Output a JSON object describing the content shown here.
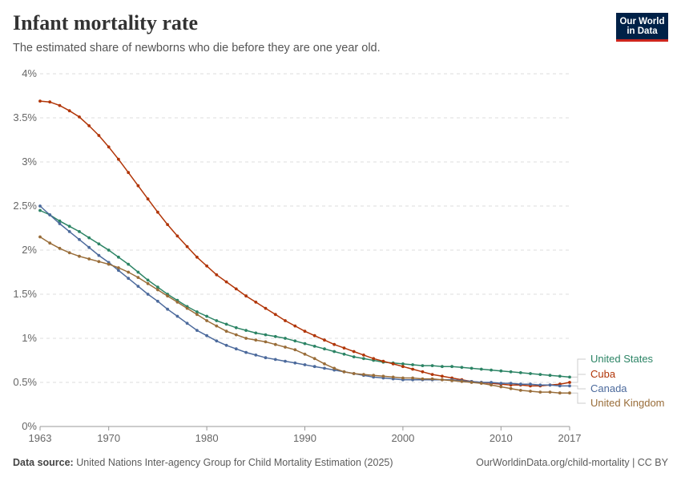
{
  "header": {
    "title": "Infant mortality rate",
    "subtitle": "The estimated share of newborns who die before they are one year old."
  },
  "logo": {
    "line1": "Our World",
    "line2": "in Data"
  },
  "footer": {
    "source_label": "Data source:",
    "source_text": "United Nations Inter-agency Group for Child Mortality Estimation (2025)",
    "link": "OurWorldinData.org/child-mortality | CC BY"
  },
  "chart_data": {
    "type": "line",
    "title": "Infant mortality rate",
    "subtitle": "The estimated share of newborns who die before they are one year old.",
    "xlim": [
      1963,
      2017
    ],
    "ylim": [
      0,
      4
    ],
    "x_ticks": [
      1963,
      1970,
      1980,
      1990,
      2000,
      2010,
      2017
    ],
    "y_ticks": [
      0,
      0.5,
      1,
      1.5,
      2,
      2.5,
      3,
      3.5,
      4
    ],
    "y_unit": "%",
    "grid": true,
    "legend": "right-end labels",
    "series": [
      {
        "name": "United States",
        "color": "#2c8465",
        "points": [
          [
            1963,
            2.45
          ],
          [
            1964,
            2.4
          ],
          [
            1965,
            2.33
          ],
          [
            1966,
            2.27
          ],
          [
            1967,
            2.21
          ],
          [
            1968,
            2.14
          ],
          [
            1969,
            2.07
          ],
          [
            1970,
            2.0
          ],
          [
            1971,
            1.92
          ],
          [
            1972,
            1.84
          ],
          [
            1973,
            1.75
          ],
          [
            1974,
            1.66
          ],
          [
            1975,
            1.58
          ],
          [
            1976,
            1.5
          ],
          [
            1977,
            1.43
          ],
          [
            1978,
            1.36
          ],
          [
            1979,
            1.3
          ],
          [
            1980,
            1.25
          ],
          [
            1981,
            1.2
          ],
          [
            1982,
            1.16
          ],
          [
            1983,
            1.12
          ],
          [
            1984,
            1.09
          ],
          [
            1985,
            1.06
          ],
          [
            1986,
            1.04
          ],
          [
            1987,
            1.02
          ],
          [
            1988,
            1.0
          ],
          [
            1989,
            0.97
          ],
          [
            1990,
            0.94
          ],
          [
            1991,
            0.91
          ],
          [
            1992,
            0.88
          ],
          [
            1993,
            0.85
          ],
          [
            1994,
            0.82
          ],
          [
            1995,
            0.79
          ],
          [
            1996,
            0.77
          ],
          [
            1997,
            0.75
          ],
          [
            1998,
            0.73
          ],
          [
            1999,
            0.72
          ],
          [
            2000,
            0.71
          ],
          [
            2001,
            0.7
          ],
          [
            2002,
            0.69
          ],
          [
            2003,
            0.69
          ],
          [
            2004,
            0.68
          ],
          [
            2005,
            0.68
          ],
          [
            2006,
            0.67
          ],
          [
            2007,
            0.66
          ],
          [
            2008,
            0.65
          ],
          [
            2009,
            0.64
          ],
          [
            2010,
            0.63
          ],
          [
            2011,
            0.62
          ],
          [
            2012,
            0.61
          ],
          [
            2013,
            0.6
          ],
          [
            2014,
            0.59
          ],
          [
            2015,
            0.58
          ],
          [
            2016,
            0.57
          ],
          [
            2017,
            0.56
          ]
        ]
      },
      {
        "name": "Cuba",
        "color": "#b13507",
        "points": [
          [
            1963,
            3.69
          ],
          [
            1964,
            3.68
          ],
          [
            1965,
            3.64
          ],
          [
            1966,
            3.58
          ],
          [
            1967,
            3.51
          ],
          [
            1968,
            3.41
          ],
          [
            1969,
            3.3
          ],
          [
            1970,
            3.17
          ],
          [
            1971,
            3.03
          ],
          [
            1972,
            2.88
          ],
          [
            1973,
            2.73
          ],
          [
            1974,
            2.58
          ],
          [
            1975,
            2.43
          ],
          [
            1976,
            2.29
          ],
          [
            1977,
            2.16
          ],
          [
            1978,
            2.04
          ],
          [
            1979,
            1.92
          ],
          [
            1980,
            1.82
          ],
          [
            1981,
            1.72
          ],
          [
            1982,
            1.64
          ],
          [
            1983,
            1.56
          ],
          [
            1984,
            1.48
          ],
          [
            1985,
            1.41
          ],
          [
            1986,
            1.34
          ],
          [
            1987,
            1.27
          ],
          [
            1988,
            1.2
          ],
          [
            1989,
            1.14
          ],
          [
            1990,
            1.08
          ],
          [
            1991,
            1.03
          ],
          [
            1992,
            0.98
          ],
          [
            1993,
            0.93
          ],
          [
            1994,
            0.89
          ],
          [
            1995,
            0.85
          ],
          [
            1996,
            0.81
          ],
          [
            1997,
            0.77
          ],
          [
            1998,
            0.74
          ],
          [
            1999,
            0.71
          ],
          [
            2000,
            0.68
          ],
          [
            2001,
            0.65
          ],
          [
            2002,
            0.62
          ],
          [
            2003,
            0.59
          ],
          [
            2004,
            0.57
          ],
          [
            2005,
            0.55
          ],
          [
            2006,
            0.53
          ],
          [
            2007,
            0.51
          ],
          [
            2008,
            0.5
          ],
          [
            2009,
            0.49
          ],
          [
            2010,
            0.48
          ],
          [
            2011,
            0.47
          ],
          [
            2012,
            0.47
          ],
          [
            2013,
            0.46
          ],
          [
            2014,
            0.46
          ],
          [
            2015,
            0.47
          ],
          [
            2016,
            0.48
          ],
          [
            2017,
            0.5
          ]
        ]
      },
      {
        "name": "Canada",
        "color": "#4c6a9c",
        "points": [
          [
            1963,
            2.5
          ],
          [
            1964,
            2.4
          ],
          [
            1965,
            2.3
          ],
          [
            1966,
            2.21
          ],
          [
            1967,
            2.12
          ],
          [
            1968,
            2.03
          ],
          [
            1969,
            1.94
          ],
          [
            1970,
            1.86
          ],
          [
            1971,
            1.77
          ],
          [
            1972,
            1.68
          ],
          [
            1973,
            1.59
          ],
          [
            1974,
            1.5
          ],
          [
            1975,
            1.42
          ],
          [
            1976,
            1.33
          ],
          [
            1977,
            1.25
          ],
          [
            1978,
            1.17
          ],
          [
            1979,
            1.09
          ],
          [
            1980,
            1.03
          ],
          [
            1981,
            0.97
          ],
          [
            1982,
            0.92
          ],
          [
            1983,
            0.88
          ],
          [
            1984,
            0.84
          ],
          [
            1985,
            0.81
          ],
          [
            1986,
            0.78
          ],
          [
            1987,
            0.76
          ],
          [
            1988,
            0.74
          ],
          [
            1989,
            0.72
          ],
          [
            1990,
            0.7
          ],
          [
            1991,
            0.68
          ],
          [
            1992,
            0.66
          ],
          [
            1993,
            0.64
          ],
          [
            1994,
            0.62
          ],
          [
            1995,
            0.6
          ],
          [
            1996,
            0.58
          ],
          [
            1997,
            0.56
          ],
          [
            1998,
            0.55
          ],
          [
            1999,
            0.54
          ],
          [
            2000,
            0.53
          ],
          [
            2001,
            0.53
          ],
          [
            2002,
            0.53
          ],
          [
            2003,
            0.53
          ],
          [
            2004,
            0.53
          ],
          [
            2005,
            0.53
          ],
          [
            2006,
            0.52
          ],
          [
            2007,
            0.51
          ],
          [
            2008,
            0.5
          ],
          [
            2009,
            0.5
          ],
          [
            2010,
            0.49
          ],
          [
            2011,
            0.49
          ],
          [
            2012,
            0.48
          ],
          [
            2013,
            0.48
          ],
          [
            2014,
            0.47
          ],
          [
            2015,
            0.47
          ],
          [
            2016,
            0.46
          ],
          [
            2017,
            0.46
          ]
        ]
      },
      {
        "name": "United Kingdom",
        "color": "#996d39",
        "points": [
          [
            1963,
            2.15
          ],
          [
            1964,
            2.08
          ],
          [
            1965,
            2.02
          ],
          [
            1966,
            1.97
          ],
          [
            1967,
            1.93
          ],
          [
            1968,
            1.9
          ],
          [
            1969,
            1.87
          ],
          [
            1970,
            1.84
          ],
          [
            1971,
            1.8
          ],
          [
            1972,
            1.75
          ],
          [
            1973,
            1.69
          ],
          [
            1974,
            1.62
          ],
          [
            1975,
            1.55
          ],
          [
            1976,
            1.48
          ],
          [
            1977,
            1.41
          ],
          [
            1978,
            1.34
          ],
          [
            1979,
            1.27
          ],
          [
            1980,
            1.2
          ],
          [
            1981,
            1.14
          ],
          [
            1982,
            1.08
          ],
          [
            1983,
            1.04
          ],
          [
            1984,
            1.0
          ],
          [
            1985,
            0.98
          ],
          [
            1986,
            0.96
          ],
          [
            1987,
            0.93
          ],
          [
            1988,
            0.9
          ],
          [
            1989,
            0.87
          ],
          [
            1990,
            0.82
          ],
          [
            1991,
            0.77
          ],
          [
            1992,
            0.71
          ],
          [
            1993,
            0.66
          ],
          [
            1994,
            0.62
          ],
          [
            1995,
            0.6
          ],
          [
            1996,
            0.59
          ],
          [
            1997,
            0.58
          ],
          [
            1998,
            0.57
          ],
          [
            1999,
            0.56
          ],
          [
            2000,
            0.55
          ],
          [
            2001,
            0.55
          ],
          [
            2002,
            0.54
          ],
          [
            2003,
            0.54
          ],
          [
            2004,
            0.53
          ],
          [
            2005,
            0.52
          ],
          [
            2006,
            0.51
          ],
          [
            2007,
            0.5
          ],
          [
            2008,
            0.49
          ],
          [
            2009,
            0.47
          ],
          [
            2010,
            0.45
          ],
          [
            2011,
            0.43
          ],
          [
            2012,
            0.41
          ],
          [
            2013,
            0.4
          ],
          [
            2014,
            0.39
          ],
          [
            2015,
            0.39
          ],
          [
            2016,
            0.38
          ],
          [
            2017,
            0.38
          ]
        ]
      }
    ],
    "end_label_order": [
      "United States",
      "Cuba",
      "Canada",
      "United Kingdom"
    ]
  }
}
